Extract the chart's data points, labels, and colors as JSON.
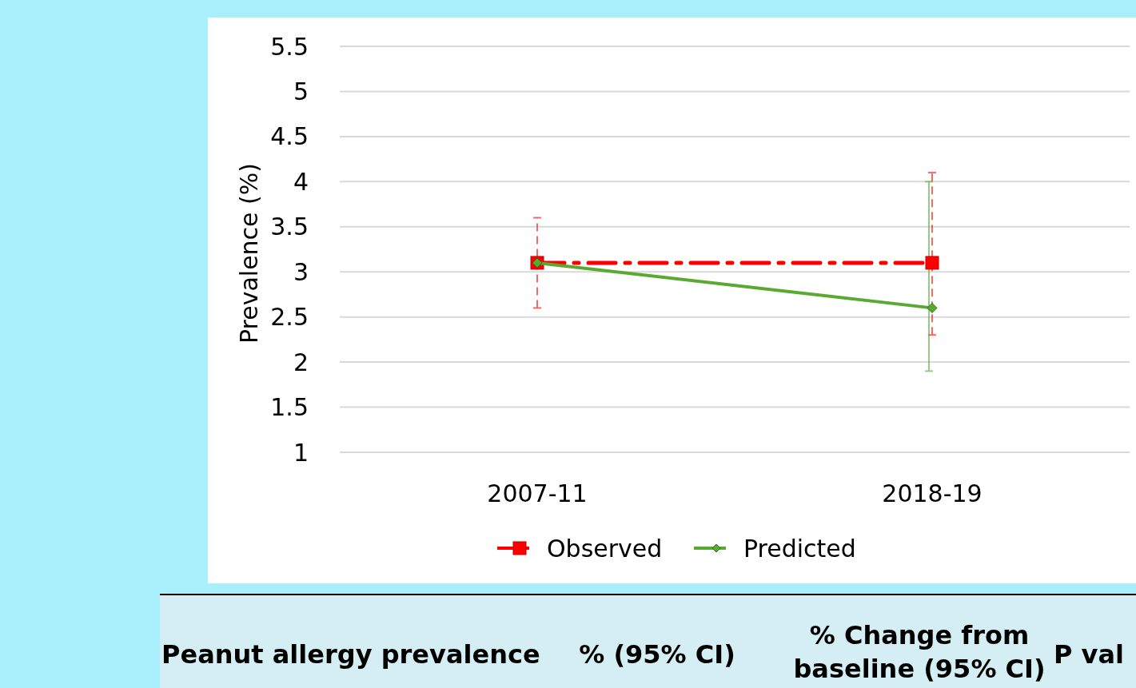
{
  "chart_data": {
    "type": "line",
    "ylabel": "Prevalence (%)",
    "categories": [
      "2007-11",
      "2018-19"
    ],
    "ylim": [
      1,
      5.5
    ],
    "yticks": [
      1,
      1.5,
      2,
      2.5,
      3,
      3.5,
      4,
      4.5,
      5,
      5.5
    ],
    "grid": "y",
    "legend": "bottom",
    "series": [
      {
        "name": "Observed",
        "color": "#ff0000",
        "values": [
          3.1,
          3.1
        ],
        "errors": [
          [
            2.6,
            3.6
          ],
          [
            2.3,
            4.1
          ]
        ],
        "marker": "square",
        "line_style": "dashed"
      },
      {
        "name": "Predicted",
        "color": "#5aaa32",
        "values": [
          3.1,
          2.6
        ],
        "errors": [
          null,
          [
            1.9,
            4.0
          ]
        ],
        "marker": "diamond",
        "line_style": "solid"
      }
    ],
    "annotations": [
      "Peanut allergy prevalence",
      "% (95% CI)",
      "% Change from baseline (95% CI)",
      "P val"
    ]
  }
}
